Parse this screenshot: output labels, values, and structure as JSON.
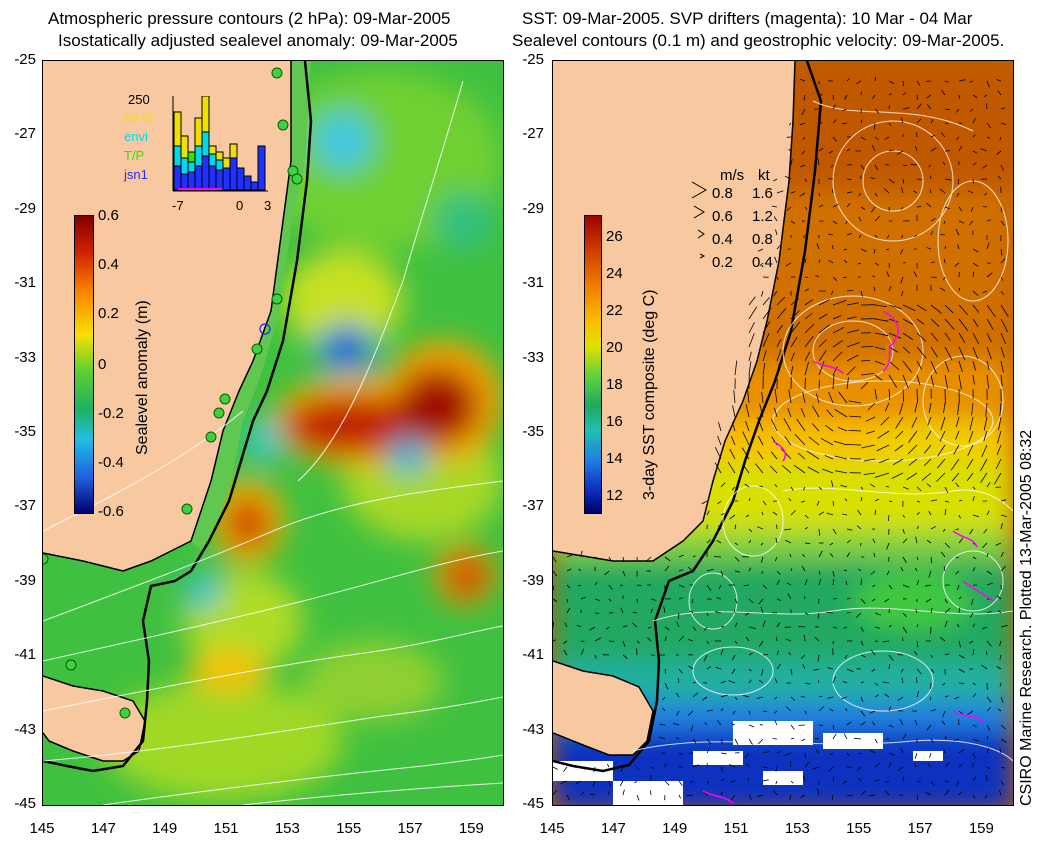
{
  "left_panel": {
    "title_line1": "Atmospheric pressure contours (2 hPa): 09-Mar-2005",
    "title_line2": "Isostatically adjusted sealevel anomaly: 09-Mar-2005",
    "colorbar": {
      "label": "Sealevel anomaly (m)",
      "ticks": [
        "0.6",
        "0.4",
        "0.2",
        "0",
        "-0.2",
        "-0.4",
        "-0.6"
      ],
      "range": [
        -0.6,
        0.6
      ]
    },
    "inset": {
      "ymax_label": "250",
      "x_ticks": [
        "-7",
        "0",
        "3"
      ],
      "legend": [
        {
          "label": "GFO",
          "color": "#f0e000"
        },
        {
          "label": "envi",
          "color": "#00d8e8"
        },
        {
          "label": "T/P",
          "color": "#38e000"
        },
        {
          "label": "jsn1",
          "color": "#2030ff"
        }
      ]
    }
  },
  "right_panel": {
    "title_line1": "SST: 09-Mar-2005. SVP drifters (magenta): 10 Mar - 04 Mar",
    "title_line2": "Sealevel contours (0.1 m) and geostrophic velocity: 09-Mar-2005.",
    "colorbar": {
      "label": "3-day SST composite (deg C)",
      "ticks": [
        "26",
        "24",
        "22",
        "20",
        "18",
        "16",
        "14",
        "12"
      ],
      "range": [
        11,
        27
      ]
    },
    "velocity_legend": {
      "header_ms": "m/s",
      "header_kt": "kt",
      "rows": [
        {
          "ms": "0.8",
          "kt": "1.6"
        },
        {
          "ms": "0.6",
          "kt": "1.2"
        },
        {
          "ms": "0.4",
          "kt": "0.8"
        },
        {
          "ms": "0.2",
          "kt": "0.4"
        }
      ]
    },
    "credit": "CSIRO Marine Research. Plotted 13-Mar-2005 08:32"
  },
  "axes": {
    "y_ticks": [
      "-25",
      "-27",
      "-29",
      "-31",
      "-33",
      "-35",
      "-37",
      "-39",
      "-41",
      "-43",
      "-45"
    ],
    "x_ticks": [
      "145",
      "147",
      "149",
      "151",
      "153",
      "155",
      "157",
      "159"
    ],
    "lat_range": [
      -45,
      -25
    ],
    "lon_range": [
      145,
      160
    ]
  },
  "colors": {
    "land": "#f8c8a0",
    "coast": "#000000",
    "drifter": "#ff00ff"
  }
}
